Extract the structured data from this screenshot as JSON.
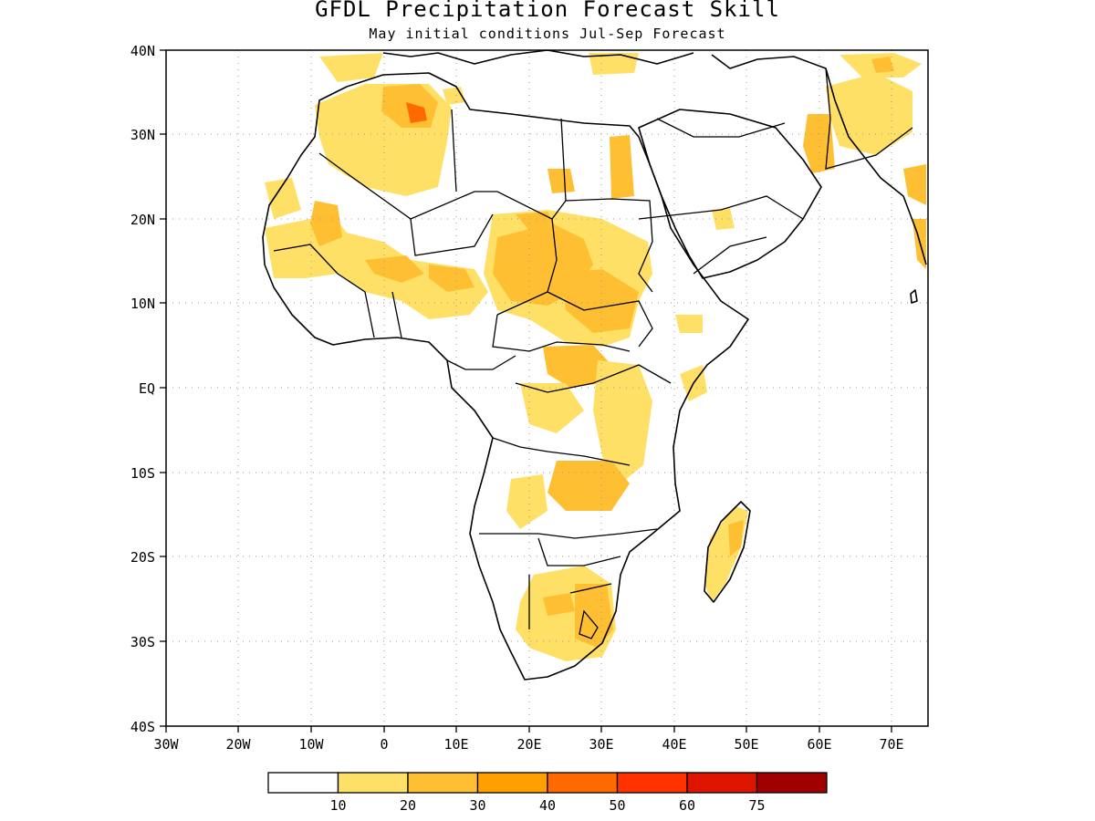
{
  "title": "GFDL Precipitation Forecast Skill",
  "subtitle": "May initial conditions  Jul-Sep Forecast",
  "axes": {
    "lon_ticks": [
      "30W",
      "20W",
      "10W",
      "0",
      "10E",
      "20E",
      "30E",
      "40E",
      "50E",
      "60E",
      "70E"
    ],
    "lat_ticks": [
      "40N",
      "30N",
      "20N",
      "10N",
      "EQ",
      "10S",
      "20S",
      "30S",
      "40S"
    ],
    "lon_range": [
      -30,
      75
    ],
    "lat_range": [
      -40,
      40
    ],
    "grid": "dotted"
  },
  "colorbar": {
    "labels": [
      "10",
      "20",
      "30",
      "40",
      "50",
      "60",
      "75"
    ],
    "colors": [
      "#ffffff",
      "#ffe066",
      "#ffbf33",
      "#ffa000",
      "#ff6a00",
      "#ff3200",
      "#dc1400",
      "#a00000"
    ]
  },
  "colors": {
    "c1": "#ffe066",
    "c2": "#ffbf33",
    "c3": "#ffa000",
    "c4": "#ff6a00",
    "c5": "#ff3200"
  }
}
